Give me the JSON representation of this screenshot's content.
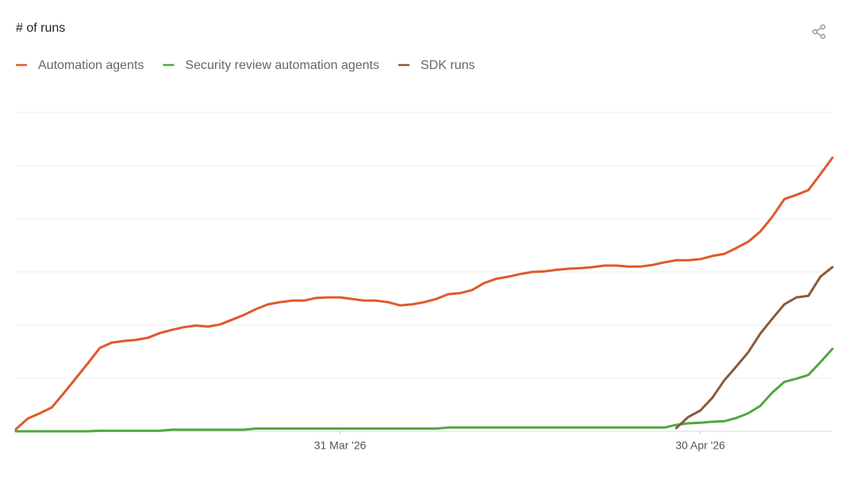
{
  "chart_data": {
    "type": "line",
    "title": "# of runs",
    "x": [
      "2026-03-04",
      "2026-03-05",
      "2026-03-06",
      "2026-03-07",
      "2026-03-08",
      "2026-03-09",
      "2026-03-10",
      "2026-03-11",
      "2026-03-12",
      "2026-03-13",
      "2026-03-14",
      "2026-03-15",
      "2026-03-16",
      "2026-03-17",
      "2026-03-18",
      "2026-03-19",
      "2026-03-20",
      "2026-03-21",
      "2026-03-22",
      "2026-03-23",
      "2026-03-24",
      "2026-03-25",
      "2026-03-26",
      "2026-03-27",
      "2026-03-28",
      "2026-03-29",
      "2026-03-30",
      "2026-03-31",
      "2026-04-01",
      "2026-04-02",
      "2026-04-03",
      "2026-04-04",
      "2026-04-05",
      "2026-04-06",
      "2026-04-07",
      "2026-04-08",
      "2026-04-09",
      "2026-04-10",
      "2026-04-11",
      "2026-04-12",
      "2026-04-13",
      "2026-04-14",
      "2026-04-15",
      "2026-04-16",
      "2026-04-17",
      "2026-04-18",
      "2026-04-19",
      "2026-04-20",
      "2026-04-21",
      "2026-04-22",
      "2026-04-23",
      "2026-04-24",
      "2026-04-25",
      "2026-04-26",
      "2026-04-27",
      "2026-04-28",
      "2026-04-29",
      "2026-04-30",
      "2026-05-01",
      "2026-05-02",
      "2026-05-03",
      "2026-05-04",
      "2026-05-05",
      "2026-05-06",
      "2026-05-07",
      "2026-05-08",
      "2026-05-09",
      "2026-05-10",
      "2026-05-11"
    ],
    "xlim": [
      "2026-03-04",
      "2026-05-11"
    ],
    "xticks": [
      {
        "value": "2026-03-31",
        "label": "31 Mar '26"
      },
      {
        "value": "2026-04-30",
        "label": "30 Apr '26"
      }
    ],
    "ylim": [
      0,
      6
    ],
    "ygrid": [
      0,
      1,
      2,
      3,
      4,
      5,
      6
    ],
    "series": [
      {
        "name": "Automation agents",
        "color": "#e0592a",
        "values": [
          0.04,
          0.24,
          0.34,
          0.45,
          0.72,
          1.0,
          1.28,
          1.57,
          1.67,
          1.7,
          1.72,
          1.76,
          1.85,
          1.91,
          1.96,
          1.99,
          1.97,
          2.01,
          2.1,
          2.19,
          2.3,
          2.39,
          2.43,
          2.46,
          2.46,
          2.51,
          2.52,
          2.52,
          2.49,
          2.46,
          2.46,
          2.43,
          2.37,
          2.39,
          2.43,
          2.49,
          2.58,
          2.6,
          2.66,
          2.79,
          2.87,
          2.91,
          2.96,
          3.0,
          3.01,
          3.04,
          3.06,
          3.07,
          3.09,
          3.12,
          3.12,
          3.1,
          3.1,
          3.13,
          3.18,
          3.22,
          3.22,
          3.24,
          3.3,
          3.34,
          3.45,
          3.57,
          3.76,
          4.04,
          4.37,
          4.45,
          4.54,
          4.84,
          5.15
        ]
      },
      {
        "name": "Security review automation agents",
        "color": "#4fa83d",
        "values": [
          0,
          0,
          0,
          0,
          0,
          0,
          0,
          0.01,
          0.01,
          0.01,
          0.01,
          0.01,
          0.01,
          0.03,
          0.03,
          0.03,
          0.03,
          0.03,
          0.03,
          0.03,
          0.05,
          0.05,
          0.05,
          0.05,
          0.05,
          0.05,
          0.05,
          0.05,
          0.05,
          0.05,
          0.05,
          0.05,
          0.05,
          0.05,
          0.05,
          0.05,
          0.07,
          0.07,
          0.07,
          0.07,
          0.07,
          0.07,
          0.07,
          0.07,
          0.07,
          0.07,
          0.07,
          0.07,
          0.07,
          0.07,
          0.07,
          0.07,
          0.07,
          0.07,
          0.07,
          0.12,
          0.15,
          0.16,
          0.18,
          0.19,
          0.25,
          0.34,
          0.48,
          0.73,
          0.93,
          0.99,
          1.06,
          1.3,
          1.55
        ]
      },
      {
        "name": "SDK runs",
        "color": "#8a5a3a",
        "values": [
          null,
          null,
          null,
          null,
          null,
          null,
          null,
          null,
          null,
          null,
          null,
          null,
          null,
          null,
          null,
          null,
          null,
          null,
          null,
          null,
          null,
          null,
          null,
          null,
          null,
          null,
          null,
          null,
          null,
          null,
          null,
          null,
          null,
          null,
          null,
          null,
          null,
          null,
          null,
          null,
          null,
          null,
          null,
          null,
          null,
          null,
          null,
          null,
          null,
          null,
          null,
          null,
          null,
          null,
          null,
          0.06,
          0.27,
          0.39,
          0.63,
          0.96,
          1.22,
          1.49,
          1.84,
          2.12,
          2.39,
          2.52,
          2.55,
          2.91,
          3.09
        ]
      }
    ]
  }
}
